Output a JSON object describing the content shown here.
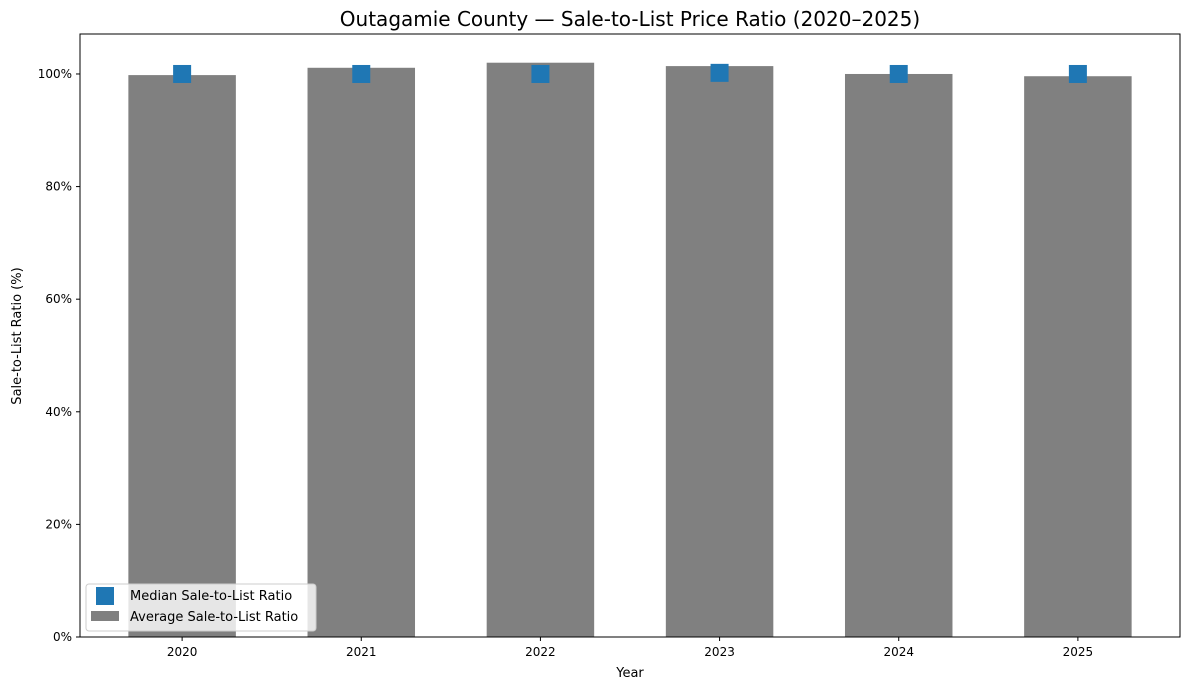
{
  "chart_data": {
    "type": "bar",
    "title": "Outagamie County — Sale-to-List Price Ratio (2020–2025)",
    "xlabel": "Year",
    "ylabel": "Sale-to-List Ratio (%)",
    "categories": [
      "2020",
      "2021",
      "2022",
      "2023",
      "2024",
      "2025"
    ],
    "ylim": [
      0,
      107.1
    ],
    "yticks": [
      0,
      20,
      40,
      60,
      80,
      100
    ],
    "ytick_labels": [
      "0%",
      "20%",
      "40%",
      "60%",
      "80%",
      "100%"
    ],
    "grid": false,
    "legend_position": "lower-left",
    "series": [
      {
        "name": "Average Sale-to-List Ratio",
        "kind": "bar",
        "color": "#808080",
        "values": [
          99.8,
          101.1,
          102.0,
          101.4,
          100.0,
          99.6
        ]
      },
      {
        "name": "Median Sale-to-List Ratio",
        "kind": "marker",
        "marker": "square",
        "color": "#1f77b4",
        "values": [
          100.0,
          100.0,
          100.0,
          100.2,
          100.0,
          100.0
        ]
      }
    ]
  }
}
